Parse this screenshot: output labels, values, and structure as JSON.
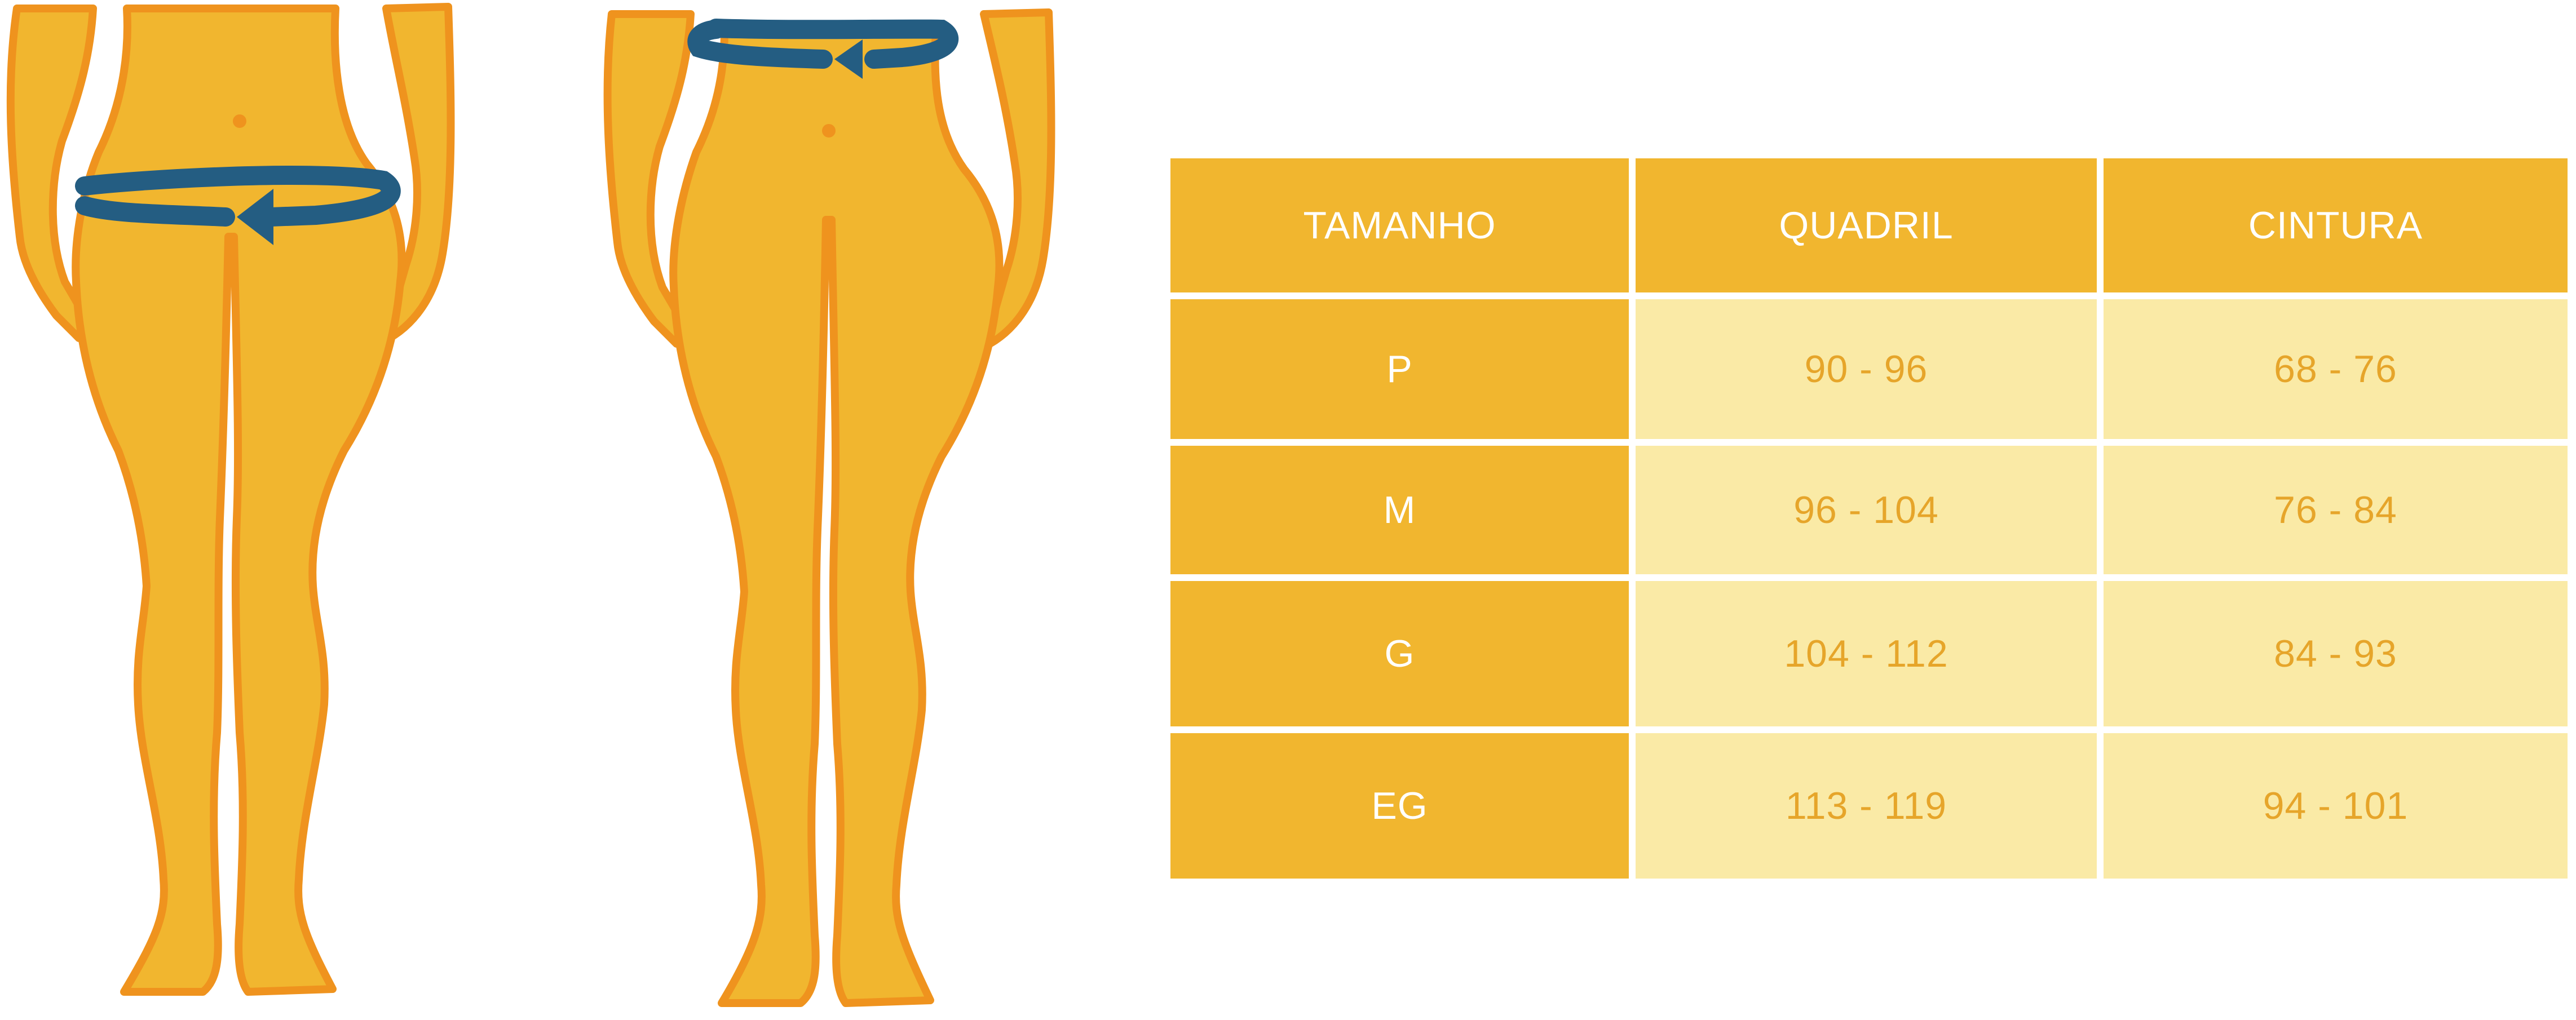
{
  "colors": {
    "body_fill": "#f1b62f",
    "body_outline": "#ef931e",
    "tape": "#245d82",
    "header_bg": "#f1b62f",
    "value_bg": "#faeaa6",
    "value_text": "#e6a52a",
    "header_text": "#ffffff"
  },
  "figures": [
    {
      "name": "hip-measurement-figure",
      "tape_position": "hips",
      "arrow": "left"
    },
    {
      "name": "waist-measurement-figure",
      "tape_position": "waist",
      "arrow": "left"
    }
  ],
  "table": {
    "headers": [
      "TAMANHO",
      "QUADRIL",
      "CINTURA"
    ],
    "rows": [
      {
        "size": "P",
        "quadril": "90 - 96",
        "cintura": "68 - 76"
      },
      {
        "size": "M",
        "quadril": "96 - 104",
        "cintura": "76 - 84"
      },
      {
        "size": "G",
        "quadril": "104 - 112",
        "cintura": "84 - 93"
      },
      {
        "size": "EG",
        "quadril": "113  - 119",
        "cintura": "94 - 101"
      }
    ]
  }
}
